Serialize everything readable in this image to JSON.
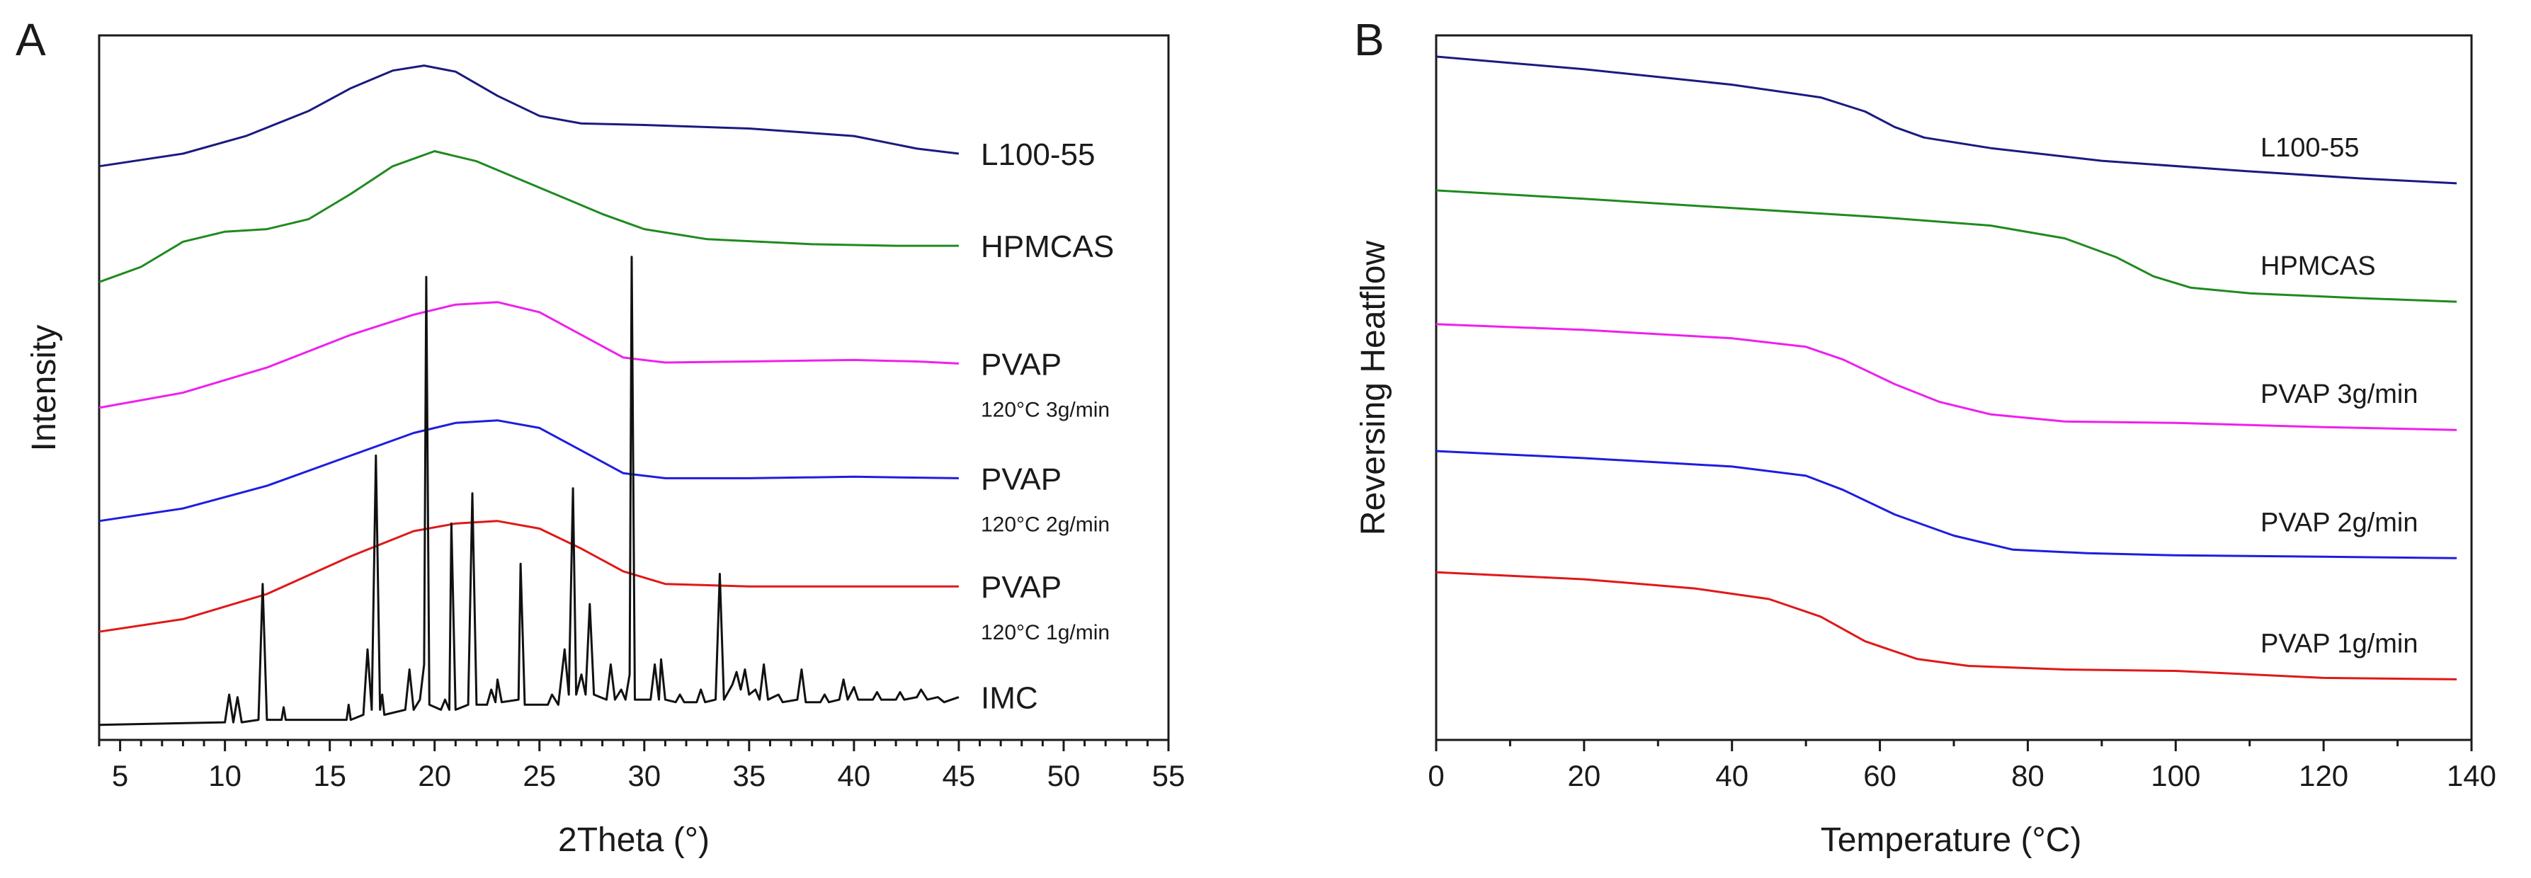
{
  "figure": {
    "panels": [
      "A",
      "B"
    ]
  },
  "chart_data": [
    {
      "type": "line",
      "panel": "A",
      "title": "",
      "xlabel": "2Theta (°)",
      "ylabel": "Intensity",
      "xlim": [
        4,
        55
      ],
      "ylim": [
        0,
        14
      ],
      "x_ticks": [
        5,
        10,
        15,
        20,
        25,
        30,
        35,
        40,
        45,
        50,
        55
      ],
      "y_ticks": [],
      "grid": false,
      "x_range_data": [
        4,
        45
      ],
      "series": [
        {
          "name": "L100-55",
          "label": "L100-55",
          "sublabel": "",
          "color": "#1a1a80",
          "baseline": 11.4,
          "points": [
            [
              4,
              0
            ],
            [
              8,
              0.25
            ],
            [
              11,
              0.6
            ],
            [
              14,
              1.1
            ],
            [
              16,
              1.55
            ],
            [
              18,
              1.9
            ],
            [
              19.5,
              2.0
            ],
            [
              21,
              1.88
            ],
            [
              23,
              1.4
            ],
            [
              25,
              1.0
            ],
            [
              27,
              0.85
            ],
            [
              30,
              0.82
            ],
            [
              35,
              0.75
            ],
            [
              40,
              0.6
            ],
            [
              43,
              0.35
            ],
            [
              45,
              0.25
            ]
          ]
        },
        {
          "name": "HPMCAS",
          "label": "HPMCAS",
          "sublabel": "",
          "color": "#1f8a1f",
          "baseline": 9.1,
          "points": [
            [
              4,
              0
            ],
            [
              6,
              0.3
            ],
            [
              8,
              0.8
            ],
            [
              10,
              1.0
            ],
            [
              12,
              1.05
            ],
            [
              14,
              1.25
            ],
            [
              16,
              1.75
            ],
            [
              18,
              2.3
            ],
            [
              20,
              2.6
            ],
            [
              22,
              2.4
            ],
            [
              24,
              2.05
            ],
            [
              26,
              1.7
            ],
            [
              28,
              1.35
            ],
            [
              30,
              1.05
            ],
            [
              33,
              0.85
            ],
            [
              38,
              0.75
            ],
            [
              42,
              0.72
            ],
            [
              45,
              0.72
            ]
          ]
        },
        {
          "name": "PVAP 120°C 3g/min",
          "label": "PVAP",
          "sublabel": "120°C 3g/min",
          "color": "#ee20ee",
          "baseline": 6.6,
          "points": [
            [
              4,
              0
            ],
            [
              8,
              0.3
            ],
            [
              12,
              0.8
            ],
            [
              16,
              1.45
            ],
            [
              19,
              1.85
            ],
            [
              21,
              2.05
            ],
            [
              23,
              2.1
            ],
            [
              25,
              1.9
            ],
            [
              27,
              1.45
            ],
            [
              29,
              1.0
            ],
            [
              31,
              0.9
            ],
            [
              35,
              0.92
            ],
            [
              40,
              0.95
            ],
            [
              43,
              0.92
            ],
            [
              45,
              0.88
            ]
          ]
        },
        {
          "name": "PVAP 120°C 2g/min",
          "label": "PVAP",
          "sublabel": "120°C 2g/min",
          "color": "#1d1de0",
          "baseline": 4.35,
          "points": [
            [
              4,
              0
            ],
            [
              8,
              0.25
            ],
            [
              12,
              0.7
            ],
            [
              16,
              1.3
            ],
            [
              19,
              1.75
            ],
            [
              21,
              1.95
            ],
            [
              23,
              2.0
            ],
            [
              25,
              1.85
            ],
            [
              27,
              1.4
            ],
            [
              29,
              0.95
            ],
            [
              31,
              0.85
            ],
            [
              35,
              0.85
            ],
            [
              40,
              0.88
            ],
            [
              45,
              0.85
            ]
          ]
        },
        {
          "name": "PVAP 120°C 1g/min",
          "label": "PVAP",
          "sublabel": "120°C 1g/min",
          "color": "#e01818",
          "baseline": 2.15,
          "points": [
            [
              4,
              0
            ],
            [
              8,
              0.25
            ],
            [
              12,
              0.75
            ],
            [
              16,
              1.5
            ],
            [
              19,
              2.0
            ],
            [
              21,
              2.15
            ],
            [
              23,
              2.2
            ],
            [
              25,
              2.05
            ],
            [
              27,
              1.65
            ],
            [
              29,
              1.2
            ],
            [
              31,
              0.95
            ],
            [
              35,
              0.9
            ],
            [
              40,
              0.9
            ],
            [
              45,
              0.9
            ]
          ]
        },
        {
          "name": "IMC",
          "label": "IMC",
          "sublabel": "",
          "color": "#111111",
          "baseline": 0.3,
          "points": [
            [
              4,
              0
            ],
            [
              10,
              0.05
            ],
            [
              10.2,
              0.6
            ],
            [
              10.4,
              0.05
            ],
            [
              10.6,
              0.55
            ],
            [
              10.8,
              0.05
            ],
            [
              11.6,
              0.1
            ],
            [
              11.8,
              2.8
            ],
            [
              12.0,
              0.1
            ],
            [
              12.7,
              0.1
            ],
            [
              12.8,
              0.35
            ],
            [
              12.9,
              0.1
            ],
            [
              15.8,
              0.1
            ],
            [
              15.9,
              0.4
            ],
            [
              16.0,
              0.1
            ],
            [
              16.6,
              0.2
            ],
            [
              16.8,
              1.5
            ],
            [
              17.0,
              0.3
            ],
            [
              17.2,
              5.35
            ],
            [
              17.4,
              0.3
            ],
            [
              17.5,
              0.6
            ],
            [
              17.6,
              0.2
            ],
            [
              18.6,
              0.3
            ],
            [
              18.8,
              1.1
            ],
            [
              19.0,
              0.3
            ],
            [
              19.3,
              0.5
            ],
            [
              19.5,
              1.2
            ],
            [
              19.6,
              8.9
            ],
            [
              19.75,
              0.4
            ],
            [
              20.3,
              0.3
            ],
            [
              20.5,
              0.5
            ],
            [
              20.7,
              0.3
            ],
            [
              20.8,
              4.0
            ],
            [
              21.0,
              0.3
            ],
            [
              21.6,
              0.4
            ],
            [
              21.8,
              4.6
            ],
            [
              22.0,
              0.4
            ],
            [
              22.5,
              0.4
            ],
            [
              22.7,
              0.7
            ],
            [
              22.9,
              0.45
            ],
            [
              23.0,
              0.9
            ],
            [
              23.2,
              0.45
            ],
            [
              24.0,
              0.5
            ],
            [
              24.1,
              3.2
            ],
            [
              24.3,
              0.4
            ],
            [
              25.4,
              0.4
            ],
            [
              25.6,
              0.6
            ],
            [
              25.9,
              0.4
            ],
            [
              26.2,
              1.5
            ],
            [
              26.4,
              0.6
            ],
            [
              26.6,
              4.7
            ],
            [
              26.75,
              0.6
            ],
            [
              27.0,
              1.0
            ],
            [
              27.2,
              0.6
            ],
            [
              27.4,
              2.4
            ],
            [
              27.6,
              0.6
            ],
            [
              28.2,
              0.5
            ],
            [
              28.4,
              1.2
            ],
            [
              28.6,
              0.5
            ],
            [
              28.9,
              0.7
            ],
            [
              29.1,
              0.5
            ],
            [
              29.3,
              1.0
            ],
            [
              29.4,
              9.3
            ],
            [
              29.55,
              0.5
            ],
            [
              30.3,
              0.5
            ],
            [
              30.5,
              1.2
            ],
            [
              30.7,
              0.5
            ],
            [
              30.8,
              1.3
            ],
            [
              31.0,
              0.5
            ],
            [
              31.5,
              0.45
            ],
            [
              31.7,
              0.6
            ],
            [
              31.9,
              0.45
            ],
            [
              32.5,
              0.45
            ],
            [
              32.7,
              0.7
            ],
            [
              32.9,
              0.45
            ],
            [
              33.4,
              0.5
            ],
            [
              33.6,
              3.0
            ],
            [
              33.8,
              0.5
            ],
            [
              34.2,
              0.8
            ],
            [
              34.4,
              1.05
            ],
            [
              34.6,
              0.7
            ],
            [
              34.8,
              1.1
            ],
            [
              35.0,
              0.6
            ],
            [
              35.3,
              0.7
            ],
            [
              35.5,
              0.5
            ],
            [
              35.7,
              1.2
            ],
            [
              35.9,
              0.5
            ],
            [
              36.4,
              0.6
            ],
            [
              36.6,
              0.45
            ],
            [
              37.3,
              0.5
            ],
            [
              37.5,
              1.1
            ],
            [
              37.7,
              0.45
            ],
            [
              38.4,
              0.45
            ],
            [
              38.6,
              0.6
            ],
            [
              38.8,
              0.45
            ],
            [
              39.3,
              0.5
            ],
            [
              39.5,
              0.9
            ],
            [
              39.7,
              0.5
            ],
            [
              40.0,
              0.75
            ],
            [
              40.2,
              0.5
            ],
            [
              40.9,
              0.5
            ],
            [
              41.1,
              0.65
            ],
            [
              41.3,
              0.5
            ],
            [
              42.0,
              0.5
            ],
            [
              42.2,
              0.65
            ],
            [
              42.4,
              0.5
            ],
            [
              43.0,
              0.55
            ],
            [
              43.2,
              0.7
            ],
            [
              43.5,
              0.5
            ],
            [
              44.0,
              0.55
            ],
            [
              44.3,
              0.45
            ],
            [
              45,
              0.55
            ]
          ]
        }
      ]
    },
    {
      "type": "line",
      "panel": "B",
      "title": "",
      "xlabel": "Temperature (°C)",
      "ylabel": "Reversing Heatflow",
      "xlim": [
        0,
        140
      ],
      "ylim": [
        0,
        10
      ],
      "x_ticks": [
        0,
        20,
        40,
        60,
        80,
        100,
        120,
        140
      ],
      "y_ticks": [],
      "grid": false,
      "series": [
        {
          "name": "L100-55",
          "label": "L100-55",
          "color": "#1a1a80",
          "points": [
            [
              0,
              9.7
            ],
            [
              20,
              9.52
            ],
            [
              40,
              9.3
            ],
            [
              52,
              9.12
            ],
            [
              58,
              8.92
            ],
            [
              62,
              8.7
            ],
            [
              66,
              8.55
            ],
            [
              75,
              8.4
            ],
            [
              90,
              8.22
            ],
            [
              110,
              8.07
            ],
            [
              125,
              7.97
            ],
            [
              138,
              7.9
            ]
          ]
        },
        {
          "name": "HPMCAS",
          "label": "HPMCAS",
          "color": "#1f8a1f",
          "points": [
            [
              0,
              7.8
            ],
            [
              20,
              7.68
            ],
            [
              40,
              7.55
            ],
            [
              60,
              7.42
            ],
            [
              75,
              7.3
            ],
            [
              85,
              7.12
            ],
            [
              92,
              6.85
            ],
            [
              97,
              6.58
            ],
            [
              102,
              6.42
            ],
            [
              110,
              6.34
            ],
            [
              125,
              6.27
            ],
            [
              138,
              6.22
            ]
          ]
        },
        {
          "name": "PVAP 3g/min",
          "label": "PVAP 3g/min",
          "color": "#ee20ee",
          "points": [
            [
              0,
              5.9
            ],
            [
              20,
              5.82
            ],
            [
              40,
              5.7
            ],
            [
              50,
              5.58
            ],
            [
              55,
              5.4
            ],
            [
              62,
              5.05
            ],
            [
              68,
              4.8
            ],
            [
              75,
              4.62
            ],
            [
              85,
              4.52
            ],
            [
              100,
              4.5
            ],
            [
              120,
              4.44
            ],
            [
              138,
              4.4
            ]
          ]
        },
        {
          "name": "PVAP 2g/min",
          "label": "PVAP 2g/min",
          "color": "#1d1de0",
          "points": [
            [
              0,
              4.1
            ],
            [
              20,
              4.0
            ],
            [
              40,
              3.88
            ],
            [
              50,
              3.75
            ],
            [
              55,
              3.55
            ],
            [
              62,
              3.2
            ],
            [
              70,
              2.9
            ],
            [
              78,
              2.7
            ],
            [
              88,
              2.65
            ],
            [
              100,
              2.62
            ],
            [
              120,
              2.6
            ],
            [
              138,
              2.58
            ]
          ]
        },
        {
          "name": "PVAP 1g/min",
          "label": "PVAP 1g/min",
          "color": "#e01818",
          "points": [
            [
              0,
              2.38
            ],
            [
              20,
              2.28
            ],
            [
              35,
              2.15
            ],
            [
              45,
              2.0
            ],
            [
              52,
              1.75
            ],
            [
              58,
              1.4
            ],
            [
              65,
              1.15
            ],
            [
              72,
              1.05
            ],
            [
              85,
              1.0
            ],
            [
              100,
              0.98
            ],
            [
              120,
              0.88
            ],
            [
              138,
              0.86
            ]
          ]
        }
      ]
    }
  ]
}
